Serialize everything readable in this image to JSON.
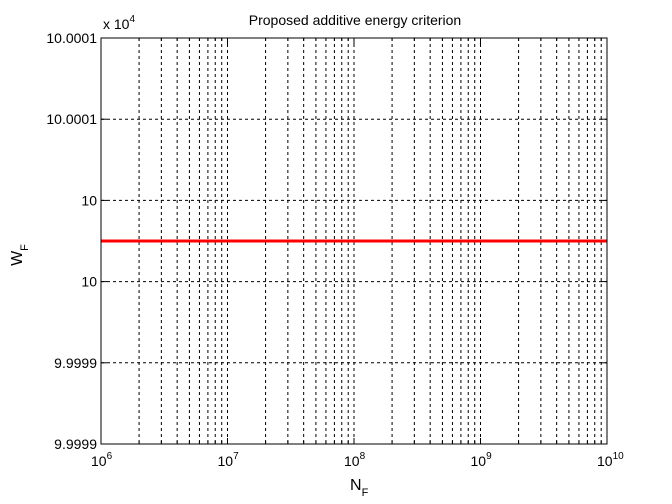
{
  "chart_data": {
    "type": "line",
    "title": "Proposed additive energy criterion",
    "xlabel": "N",
    "xlabel_sub": "F",
    "ylabel": "W",
    "ylabel_sub": "F",
    "x_scale": "log",
    "xlim": [
      1000000,
      10000000000
    ],
    "x_tick_base": "10",
    "x_tick_exponents": [
      "6",
      "7",
      "8",
      "9",
      "10"
    ],
    "ylim": [
      99999,
      100001
    ],
    "y_tick_labels": [
      "9.9999",
      "9.9999",
      "10",
      "10",
      "10.0001",
      "10.0001"
    ],
    "y_multiplier": "x 10",
    "y_multiplier_exp": "4",
    "grid": true,
    "series": [
      {
        "color": "#ff0000",
        "x": [
          1000000,
          10000000000
        ],
        "y": [
          100000,
          100000
        ]
      }
    ]
  }
}
